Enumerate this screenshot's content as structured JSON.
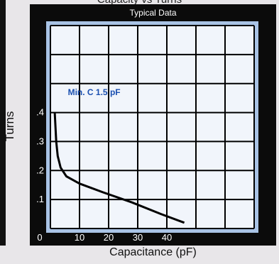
{
  "page": {
    "top_title": "Capacity vs Turns"
  },
  "chart_data": {
    "type": "line",
    "title": "Typical Data",
    "xlabel": "Capacitance (pF)",
    "ylabel": "Turns",
    "xlim": [
      0,
      70
    ],
    "ylim": [
      0,
      0.7
    ],
    "x_ticks": [
      {
        "value": 0,
        "label": "0"
      },
      {
        "value": 10,
        "label": "10"
      },
      {
        "value": 20,
        "label": "20"
      },
      {
        "value": 30,
        "label": "30"
      },
      {
        "value": 40,
        "label": "40"
      }
    ],
    "y_ticks": [
      {
        "value": 0.1,
        "label": ".1"
      },
      {
        "value": 0.2,
        "label": ".2"
      },
      {
        "value": 0.3,
        "label": ".3"
      },
      {
        "value": 0.4,
        "label": ".4"
      }
    ],
    "grid": true,
    "series": [
      {
        "x": [
          1.5,
          2.0,
          2.5,
          3.5,
          5.5,
          10,
          18,
          28,
          38,
          46
        ],
        "y": [
          0.4,
          0.3,
          0.25,
          0.21,
          0.18,
          0.155,
          0.125,
          0.09,
          0.05,
          0.02
        ]
      }
    ],
    "annotations": [
      {
        "text": "Min. C 1.5 pF",
        "x": 6,
        "y": 0.46
      }
    ],
    "colors": {
      "frame": "#0b0b0b",
      "border": "#a9c3e5",
      "plot_bg": "#f1f5fb",
      "grid": "#000000",
      "line": "#000000",
      "annotation": "#1a4fb0",
      "tick_text": "#ffffff"
    }
  }
}
